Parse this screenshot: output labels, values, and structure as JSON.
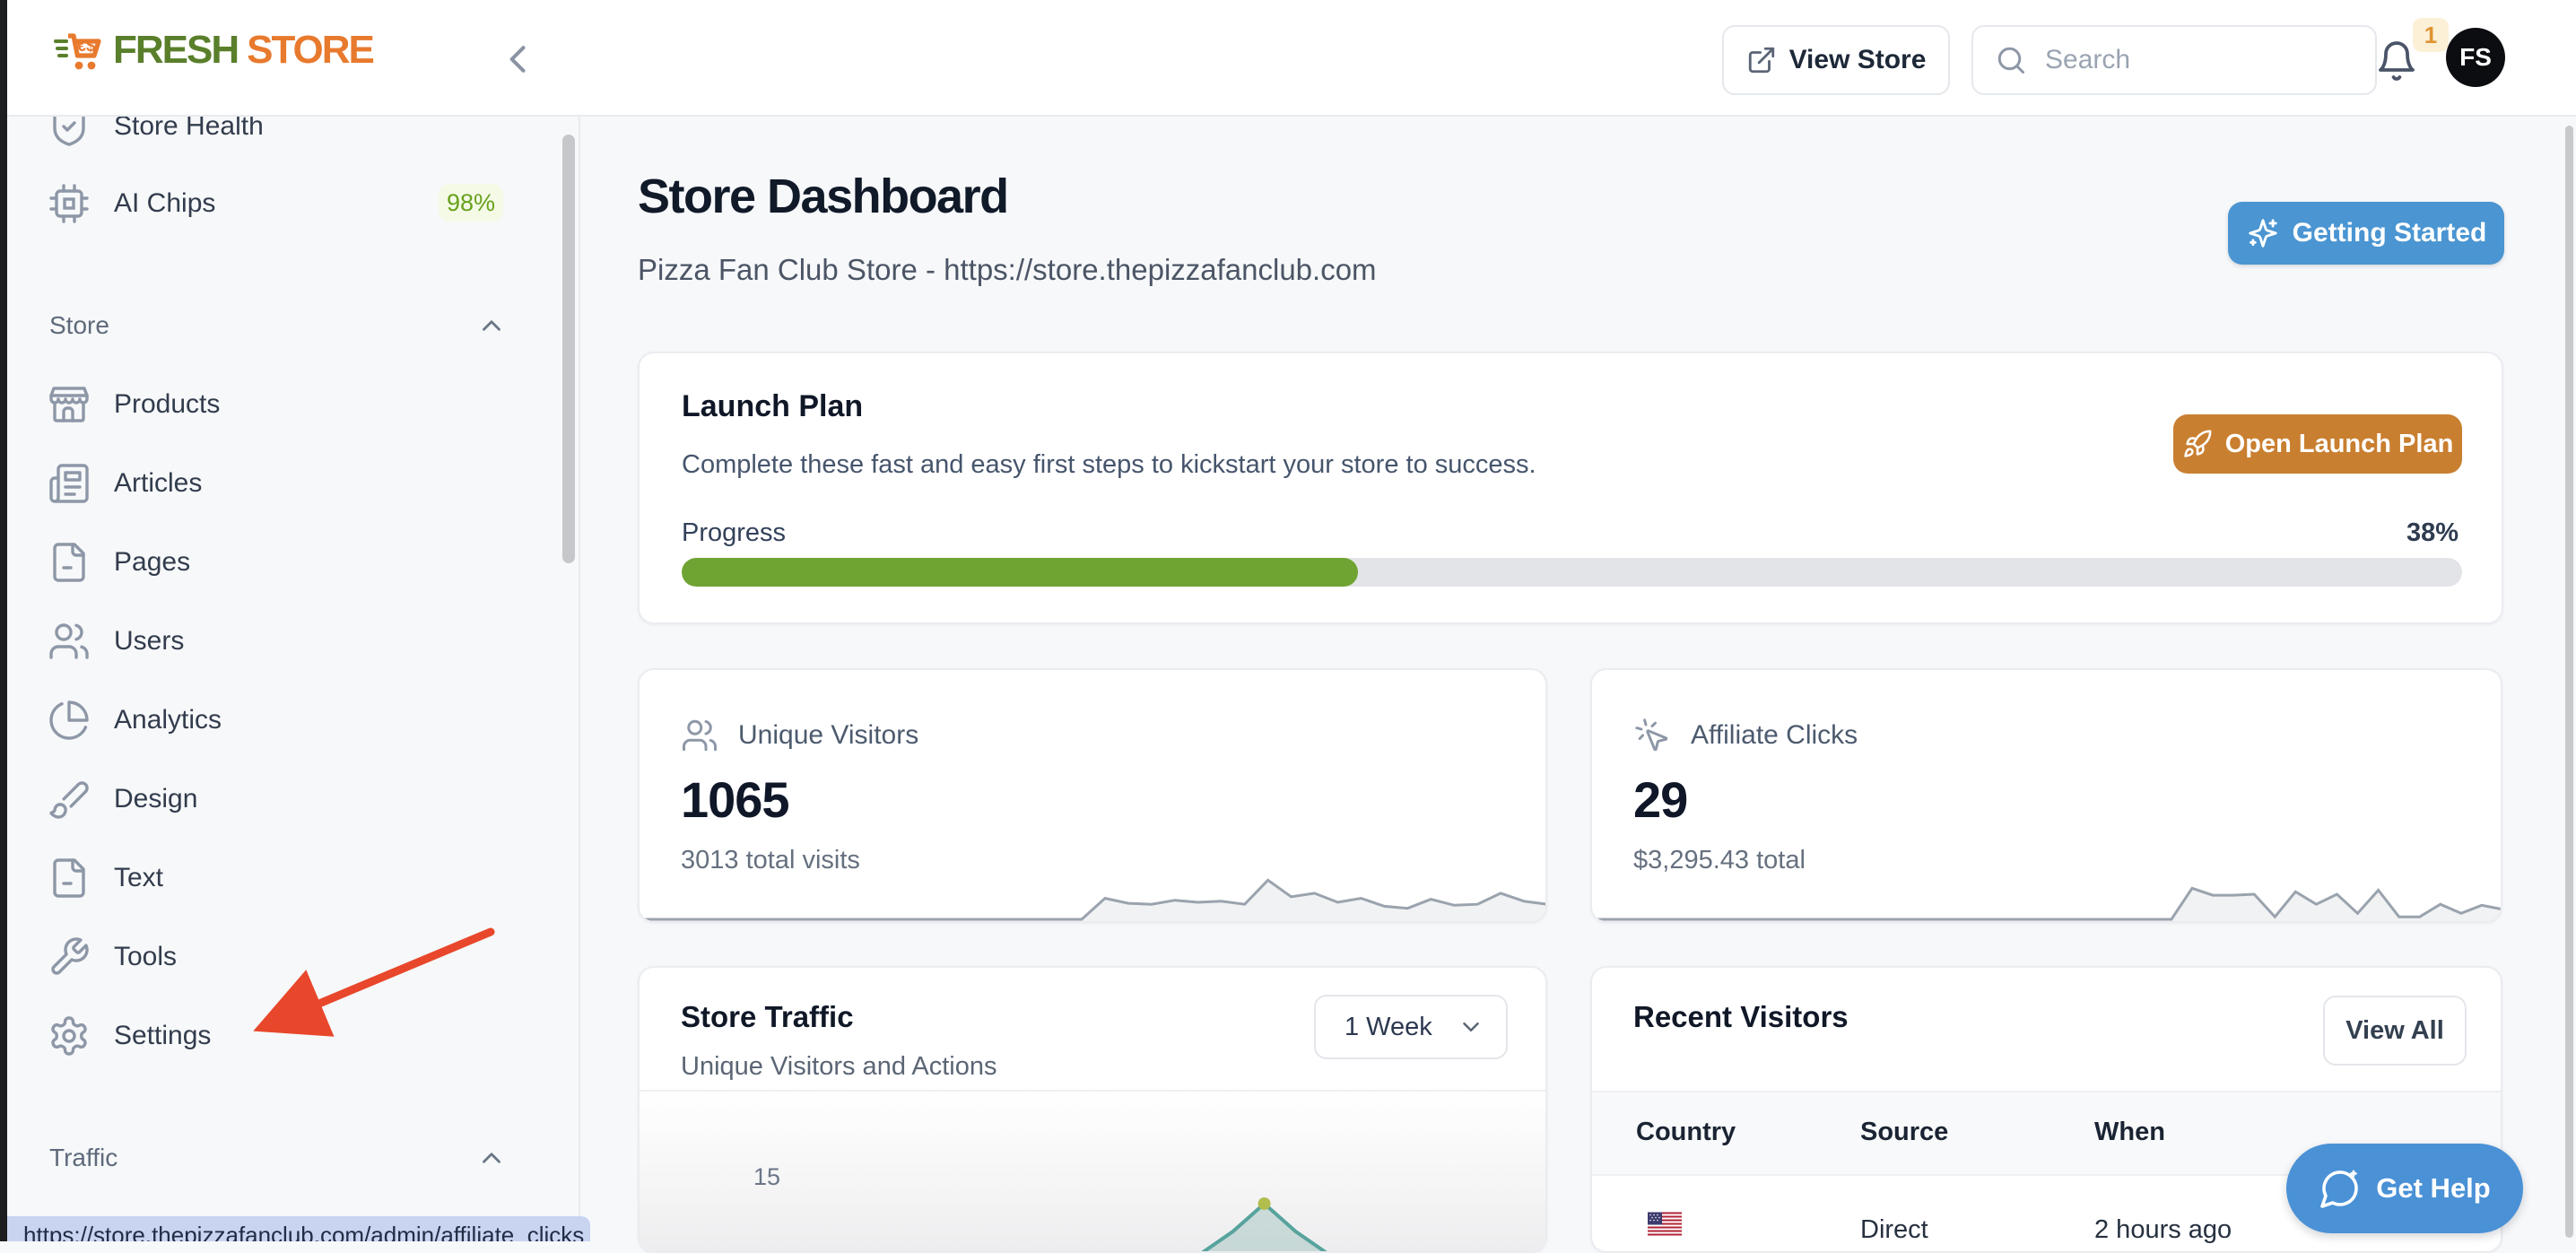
{
  "header": {
    "logo": {
      "fresh": "FRESH",
      "store": "STORE"
    },
    "view_store_label": "View Store",
    "search_placeholder": "Search",
    "notification_count": "1",
    "avatar_initials": "FS"
  },
  "sidebar": {
    "health": {
      "label": "Store Health"
    },
    "ai_chips": {
      "label": "AI Chips",
      "badge": "98%"
    },
    "store_section": {
      "label": "Store",
      "items": [
        {
          "label": "Products"
        },
        {
          "label": "Articles"
        },
        {
          "label": "Pages"
        },
        {
          "label": "Users"
        },
        {
          "label": "Analytics"
        },
        {
          "label": "Design"
        },
        {
          "label": "Text"
        },
        {
          "label": "Tools"
        },
        {
          "label": "Settings"
        }
      ]
    },
    "traffic_section": {
      "label": "Traffic"
    }
  },
  "page": {
    "title": "Store Dashboard",
    "subtitle": "Pizza Fan Club Store - https://store.thepizzafanclub.com",
    "getting_started_label": "Getting Started"
  },
  "launch_plan": {
    "title": "Launch Plan",
    "description": "Complete these fast and easy first steps to kickstart your store to success.",
    "button_label": "Open Launch Plan",
    "progress_label": "Progress",
    "progress_value": "38%",
    "progress_pct": 38
  },
  "stats": [
    {
      "label": "Unique Visitors",
      "value": "1065",
      "sub": "3013 total visits"
    },
    {
      "label": "Affiliate Clicks",
      "value": "29",
      "sub": "$3,295.43 total"
    }
  ],
  "store_traffic": {
    "title": "Store Traffic",
    "subtitle": "Unique Visitors and Actions",
    "range_selected": "1 Week"
  },
  "recent_visitors": {
    "title": "Recent Visitors",
    "view_all_label": "View All",
    "columns": [
      "Country",
      "Source",
      "When"
    ],
    "rows": [
      {
        "country": "United States",
        "source": "Direct",
        "when": "2 hours ago"
      }
    ]
  },
  "help_button": {
    "label": "Get Help"
  },
  "status_bar": {
    "url": "https://store.thepizzafanclub.com/admin/affiliate_clicks"
  },
  "chart_data": [
    {
      "type": "area",
      "name": "unique-visitors-sparkline",
      "values": [
        0,
        0,
        0,
        0,
        0,
        0,
        0,
        0,
        0,
        0,
        0,
        0,
        0,
        0,
        0,
        0,
        0,
        0,
        0,
        0,
        0.42,
        0.32,
        0.3,
        0.38,
        0.34,
        0.36,
        0.3,
        0.78,
        0.45,
        0.52,
        0.34,
        0.42,
        0.26,
        0.22,
        0.4,
        0.28,
        0.3,
        0.52,
        0.36,
        0.3
      ]
    },
    {
      "type": "area",
      "name": "affiliate-clicks-sparkline",
      "values": [
        0,
        0,
        0,
        0,
        0,
        0,
        0,
        0,
        0,
        0,
        0,
        0,
        0,
        0,
        0,
        0,
        0,
        0,
        0,
        0,
        0,
        0,
        0,
        0,
        0,
        0,
        0,
        0,
        0,
        0.62,
        0.48,
        0.48,
        0.5,
        0.05,
        0.55,
        0.3,
        0.5,
        0.12,
        0.58,
        0.05,
        0.05,
        0.3,
        0.12,
        0.28,
        0.2
      ]
    },
    {
      "type": "area",
      "name": "store-traffic-chart",
      "y_tick": "15",
      "marker": "max",
      "values": [
        0,
        0,
        0,
        0,
        0,
        0,
        0,
        0,
        0,
        0,
        0,
        0,
        0,
        0,
        0,
        0,
        0,
        0,
        0,
        0.14,
        0.32,
        0.14,
        0,
        0,
        0,
        0,
        0,
        0,
        0,
        0
      ]
    }
  ],
  "colors": {
    "accent_blue": "#4a95d2",
    "button_orange": "#c97f30",
    "progress_green": "#6fa433",
    "logo_green": "#5a7f2b",
    "logo_orange": "#e87a2e",
    "badge_green": "#68a11d",
    "arrow_red": "#e8472b",
    "status_bg": "#c9d4f1",
    "spark_gray": "#9aa3ad",
    "traffic_teal": "#57a39d"
  }
}
